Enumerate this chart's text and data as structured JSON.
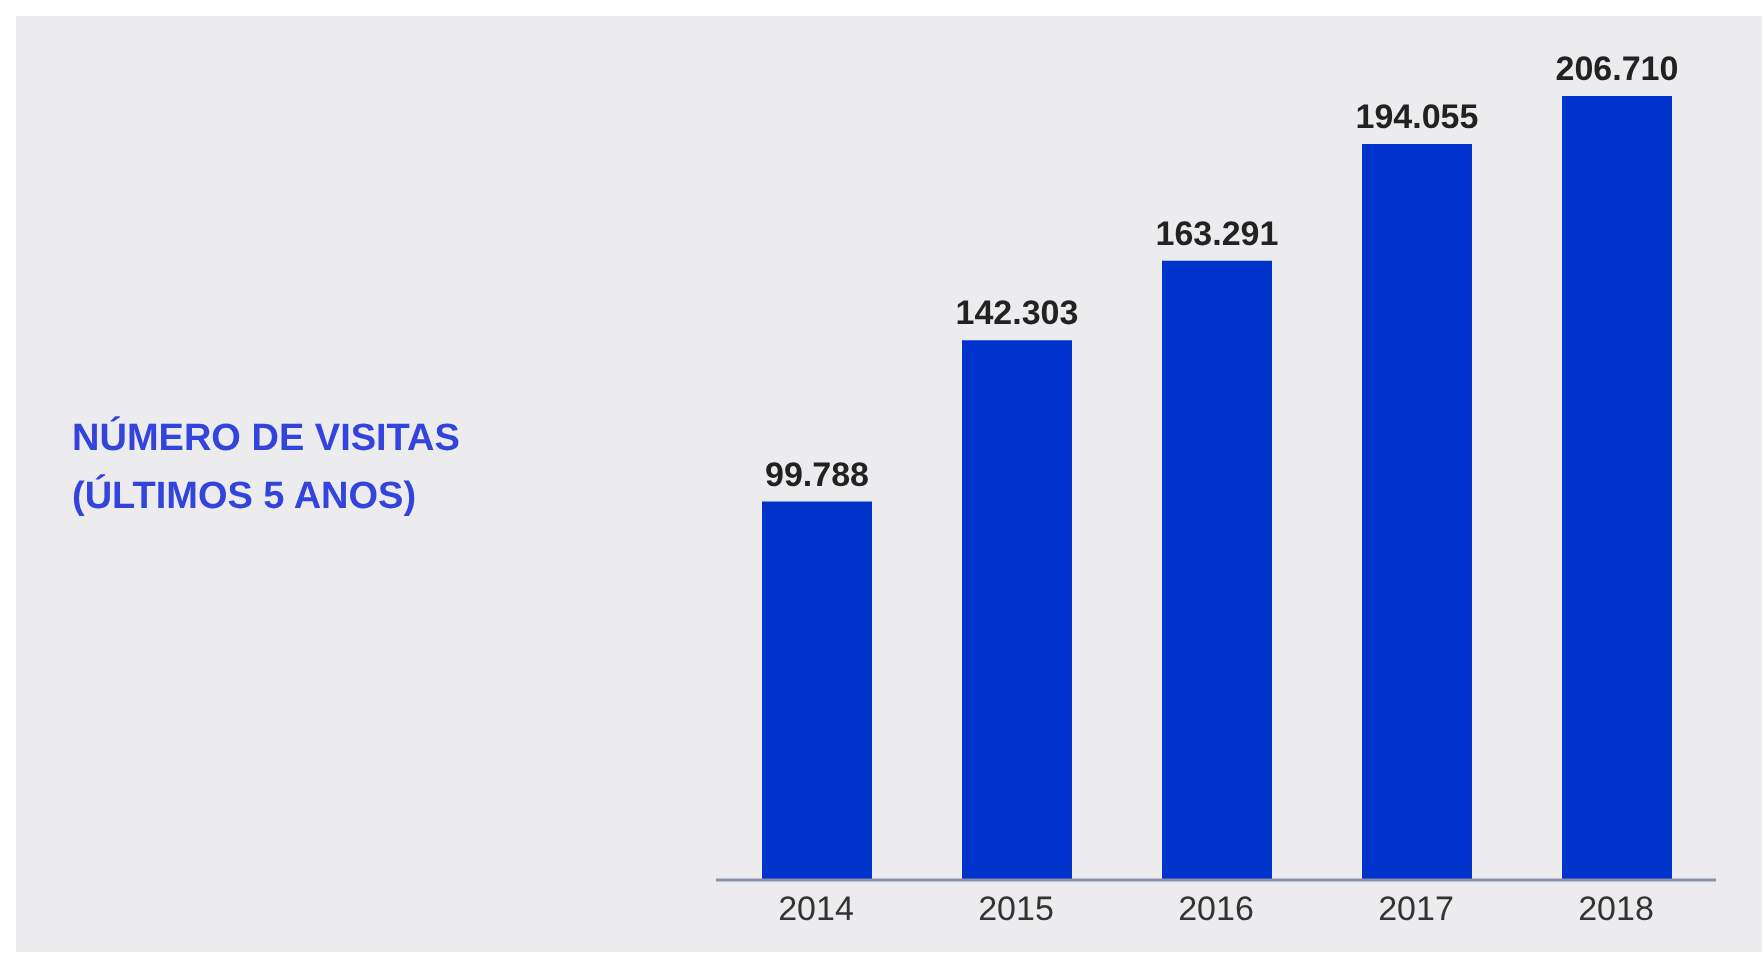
{
  "chart_data": {
    "type": "bar",
    "title": "NÚMERO DE VISITAS\n(ÚLTIMOS 5 ANOS)",
    "categories": [
      "2014",
      "2015",
      "2016",
      "2017",
      "2018"
    ],
    "values": [
      99788,
      142303,
      163291,
      194055,
      206710
    ],
    "value_labels": [
      "99.788",
      "142.303",
      "163.291",
      "194.055",
      "206.710"
    ],
    "color": "#0033cc",
    "grid": false,
    "legend": false
  }
}
